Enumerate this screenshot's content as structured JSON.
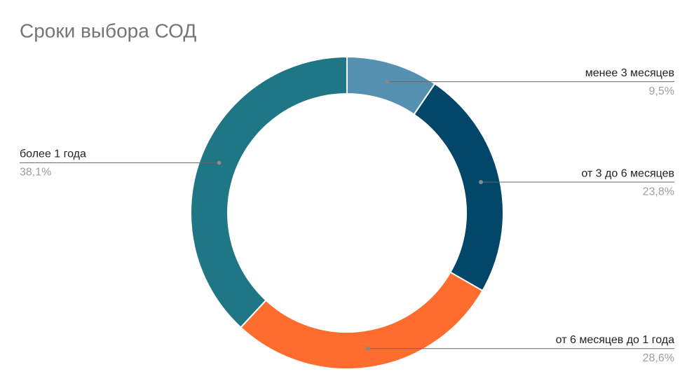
{
  "chart_data": {
    "type": "donut",
    "title": "Сроки выбора СОД",
    "categories": [
      "менее 3 месяцев",
      "от 3 до 6 месяцев",
      "от 6 месяцев до 1 года",
      "более 1 года"
    ],
    "values": [
      9.5,
      23.8,
      28.6,
      38.1
    ],
    "value_labels": [
      "9,5%",
      "23,8%",
      "28,6%",
      "38,1%"
    ],
    "colors": [
      "#5690b0",
      "#02476a",
      "#ff6d2e",
      "#1f7685"
    ]
  }
}
